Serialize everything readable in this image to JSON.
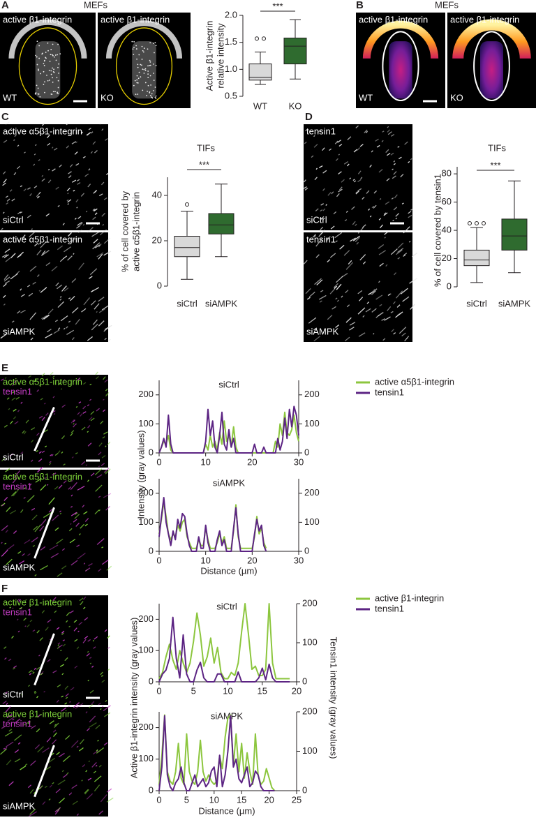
{
  "figure": {
    "panels": [
      {
        "letter": "A",
        "title": "MEFs",
        "images": [
          {
            "label": "active β1-integrin",
            "condition": "WT"
          },
          {
            "label": "active β1-integrin",
            "condition": "KO"
          }
        ]
      },
      {
        "letter": "B",
        "title": "MEFs",
        "images": [
          {
            "label": "active β1-integrin",
            "condition": "WT"
          },
          {
            "label": "active β1-integrin",
            "condition": "KO"
          }
        ]
      },
      {
        "letter": "C",
        "images": [
          {
            "label": "active α5β1-integrin",
            "condition": "siCtrl"
          },
          {
            "label": "active α5β1-integrin",
            "condition": "siAMPK"
          }
        ]
      },
      {
        "letter": "D",
        "images": [
          {
            "label": "tensin1",
            "condition": "siCtrl"
          },
          {
            "label": "tensin1",
            "condition": "siAMPK"
          }
        ]
      },
      {
        "letter": "E",
        "images": [
          {
            "labels": [
              "active α5β1-integrin",
              "tensin1"
            ],
            "condition": "siCtrl"
          },
          {
            "labels": [
              "active α5β1-integrin",
              "tensin1"
            ],
            "condition": "siAMPK"
          }
        ]
      },
      {
        "letter": "F",
        "images": [
          {
            "labels": [
              "active β1-integrin",
              "tensin1"
            ],
            "condition": "siCtrl"
          },
          {
            "labels": [
              "active β1-integrin",
              "tensin1"
            ],
            "condition": "siAMPK"
          }
        ]
      }
    ]
  },
  "chart_data": [
    {
      "type": "box",
      "ylabel": [
        "Active β1-integrin",
        "relative intensity"
      ],
      "categories": [
        "WT",
        "KO"
      ],
      "significance": "***",
      "boxes": [
        {
          "whisker_low": 0.72,
          "q1": 0.8,
          "median": 0.85,
          "q3": 1.1,
          "whisker_high": 1.32,
          "outliers": [
            1.57,
            1.57
          ],
          "color": "#d9d9d9"
        },
        {
          "whisker_low": 0.82,
          "q1": 1.1,
          "median": 1.43,
          "q3": 1.58,
          "whisker_high": 1.92,
          "outliers": [],
          "color": "#2f6b2f"
        }
      ],
      "ylim": [
        0.5,
        2.0
      ],
      "yticks": [
        0.5,
        {
          "value": 1.0,
          "label": "1.0"
        },
        1.5,
        {
          "value": 2.0,
          "label": "2.0"
        }
      ]
    },
    {
      "type": "box",
      "title": "TIFs",
      "ylabel": [
        "% of cell covered by",
        "active α5β1-integrin"
      ],
      "categories": [
        "siCtrl",
        "siAMPK"
      ],
      "significance": "***",
      "boxes": [
        {
          "whisker_low": 3,
          "q1": 13,
          "median": 17,
          "q3": 22,
          "whisker_high": 33,
          "outliers": [
            36
          ],
          "color": "#d9d9d9"
        },
        {
          "whisker_low": 13,
          "q1": 23,
          "median": 27,
          "q3": 32,
          "whisker_high": 45,
          "outliers": [],
          "color": "#2f6b2f"
        }
      ],
      "ylim": [
        0,
        48
      ],
      "yticks": [
        0,
        20,
        40
      ]
    },
    {
      "type": "box",
      "title": "TIFs",
      "ylabel": [
        "% of cell covered by tensin1"
      ],
      "categories": [
        "siCtrl",
        "siAMPK"
      ],
      "significance": "***",
      "boxes": [
        {
          "whisker_low": 3,
          "q1": 15,
          "median": 19,
          "q3": 26,
          "whisker_high": 42,
          "outliers": [
            45,
            45,
            45
          ],
          "color": "#d9d9d9"
        },
        {
          "whisker_low": 10,
          "q1": 26,
          "median": 36,
          "q3": 48,
          "whisker_high": 75,
          "outliers": [],
          "color": "#2f6b2f"
        }
      ],
      "ylim": [
        0,
        85
      ],
      "yticks": [
        0,
        20,
        40,
        60,
        80
      ]
    },
    {
      "type": "line",
      "title": "siCtrl",
      "ylabel": "Intensity (gray values)",
      "x": [
        0,
        0.5,
        1,
        1.5,
        2,
        2.5,
        3,
        3.5,
        4,
        4.5,
        5,
        5.5,
        6,
        6.5,
        7,
        7.5,
        8,
        8.5,
        9,
        9.5,
        10,
        10.5,
        11,
        11.5,
        12,
        12.5,
        13,
        13.5,
        14,
        14.5,
        15,
        15.5,
        16,
        16.5,
        17,
        17.5,
        18,
        18.5,
        19,
        19.5,
        20,
        20.5,
        21,
        21.5,
        22,
        22.5,
        23,
        23.5,
        24,
        24.5,
        25,
        25.5,
        26,
        26.5,
        27,
        27.5,
        28,
        28.5,
        29,
        29.5,
        30
      ],
      "series": [
        {
          "name": "active α5β1-integrin",
          "color": "#8cc63e",
          "values": [
            0,
            20,
            40,
            30,
            60,
            10,
            0,
            0,
            0,
            0,
            0,
            0,
            0,
            0,
            0,
            0,
            0,
            0,
            0,
            0,
            30,
            10,
            60,
            20,
            40,
            10,
            70,
            30,
            110,
            40,
            60,
            20,
            90,
            20,
            0,
            0,
            0,
            0,
            0,
            0,
            0,
            0,
            0,
            0,
            0,
            0,
            0,
            0,
            0,
            0,
            40,
            20,
            100,
            60,
            140,
            70,
            60,
            80,
            130,
            70,
            40
          ]
        },
        {
          "name": "tensin1",
          "color": "#5c2483",
          "axis": "y2",
          "values": [
            0,
            20,
            50,
            20,
            130,
            30,
            0,
            0,
            0,
            0,
            0,
            0,
            0,
            0,
            0,
            0,
            0,
            0,
            0,
            0,
            40,
            150,
            60,
            110,
            20,
            0,
            60,
            140,
            30,
            10,
            80,
            20,
            50,
            0,
            0,
            0,
            0,
            0,
            0,
            0,
            0,
            30,
            0,
            0,
            0,
            20,
            0,
            0,
            0,
            0,
            0,
            50,
            10,
            40,
            120,
            50,
            150,
            90,
            160,
            130,
            60
          ]
        }
      ],
      "xlim": [
        0,
        30
      ],
      "xticks": [
        0,
        10,
        20,
        30
      ],
      "ylim": [
        0,
        250
      ],
      "yticks": [
        0,
        100,
        200
      ],
      "y2lim": [
        0,
        250
      ],
      "y2ticks": [
        0,
        100,
        200
      ]
    },
    {
      "type": "line",
      "title": "siAMPK",
      "xlabel": "Distance (µm)",
      "x": [
        0,
        0.5,
        1,
        1.5,
        2,
        2.5,
        3,
        3.5,
        4,
        4.5,
        5,
        5.5,
        6,
        6.5,
        7,
        7.5,
        8,
        8.5,
        9,
        9.5,
        10,
        10.5,
        11,
        11.5,
        12,
        12.5,
        13,
        13.5,
        14,
        14.5,
        15,
        15.5,
        16,
        16.5,
        17,
        17.5,
        18,
        18.5,
        19,
        19.5,
        20,
        20.5,
        21,
        21.5,
        22,
        22.5,
        23
      ],
      "series": [
        {
          "color": "#8cc63e",
          "values": [
            60,
            110,
            170,
            120,
            60,
            40,
            60,
            50,
            90,
            70,
            100,
            110,
            50,
            30,
            10,
            10,
            10,
            40,
            20,
            20,
            80,
            40,
            10,
            10,
            10,
            30,
            60,
            30,
            50,
            10,
            10,
            10,
            70,
            160,
            50,
            10,
            10,
            10,
            10,
            10,
            10,
            50,
            120,
            60,
            80,
            30,
            10
          ]
        },
        {
          "color": "#5c2483",
          "axis": "y2",
          "values": [
            50,
            120,
            185,
            100,
            60,
            20,
            70,
            40,
            110,
            80,
            130,
            120,
            60,
            20,
            0,
            0,
            0,
            50,
            10,
            10,
            90,
            30,
            0,
            0,
            0,
            40,
            70,
            20,
            40,
            0,
            0,
            0,
            80,
            150,
            60,
            0,
            0,
            0,
            0,
            0,
            0,
            60,
            110,
            70,
            90,
            20,
            0
          ]
        }
      ],
      "xlim": [
        0,
        30
      ],
      "xticks": [
        0,
        10,
        20,
        30
      ],
      "ylim": [
        0,
        250
      ],
      "yticks": [
        0,
        100,
        200
      ],
      "y2lim": [
        0,
        250
      ],
      "y2ticks": [
        0,
        100,
        200
      ]
    },
    {
      "type": "line",
      "title": "siCtrl",
      "ylabel": "Active β1-integrin intensity (gray values)",
      "y2label": "Tensin1 intensity (gray values)",
      "x": [
        0,
        0.5,
        1,
        1.5,
        2,
        2.5,
        3,
        3.5,
        4,
        4.5,
        5,
        5.5,
        6,
        6.5,
        7,
        7.5,
        8,
        8.5,
        9,
        9.5,
        10,
        10.5,
        11,
        11.5,
        12,
        12.5,
        13,
        13.5,
        14,
        14.5,
        15,
        15.5,
        16,
        16.5,
        17,
        17.5,
        18,
        18.5,
        19
      ],
      "series": [
        {
          "name": "active β1-integrin",
          "color": "#8cc63e",
          "values": [
            10,
            30,
            80,
            120,
            70,
            40,
            100,
            60,
            30,
            60,
            130,
            220,
            150,
            50,
            80,
            140,
            60,
            110,
            30,
            10,
            10,
            30,
            20,
            60,
            160,
            250,
            150,
            40,
            50,
            20,
            20,
            40,
            250,
            60,
            10,
            10,
            10,
            10,
            10
          ]
        },
        {
          "name": "tensin1",
          "color": "#5c2483",
          "axis": "y2",
          "values": [
            0,
            20,
            30,
            60,
            165,
            60,
            10,
            120,
            20,
            0,
            0,
            30,
            50,
            10,
            0,
            0,
            0,
            20,
            20,
            0,
            0,
            0,
            0,
            25,
            0,
            0,
            0,
            0,
            0,
            10,
            35,
            5,
            45,
            10,
            0,
            0,
            0,
            0,
            0
          ]
        }
      ],
      "xlim": [
        0,
        20
      ],
      "xticks": [
        0,
        5,
        10,
        15,
        20
      ],
      "ylim": [
        0,
        250
      ],
      "yticks": [
        0,
        100,
        200
      ],
      "y2lim": [
        0,
        200
      ],
      "y2ticks": [
        0,
        100,
        200
      ]
    },
    {
      "type": "line",
      "title": "siAMPK",
      "xlabel": "Distance (µm)",
      "x": [
        0,
        0.5,
        1,
        1.5,
        2,
        2.5,
        3,
        3.5,
        4,
        4.5,
        5,
        5.5,
        6,
        6.5,
        7,
        7.5,
        8,
        8.5,
        9,
        9.5,
        10,
        10.5,
        11,
        11.5,
        12,
        12.5,
        13,
        13.5,
        14,
        14.5,
        15,
        15.5,
        16,
        16.5,
        17,
        17.5,
        18,
        18.5,
        19,
        19.5,
        20,
        20.5,
        21
      ],
      "series": [
        {
          "color": "#8cc63e",
          "values": [
            20,
            110,
            240,
            60,
            30,
            20,
            60,
            150,
            40,
            20,
            180,
            60,
            30,
            20,
            60,
            160,
            60,
            30,
            50,
            30,
            20,
            30,
            110,
            70,
            170,
            230,
            240,
            80,
            180,
            60,
            150,
            40,
            120,
            60,
            20,
            180,
            50,
            20,
            30,
            70,
            40,
            10,
            0
          ]
        },
        {
          "color": "#5c2483",
          "axis": "y2",
          "values": [
            0,
            60,
            190,
            40,
            10,
            0,
            20,
            30,
            60,
            20,
            0,
            0,
            20,
            40,
            10,
            20,
            30,
            10,
            20,
            50,
            60,
            10,
            90,
            10,
            40,
            100,
            190,
            60,
            80,
            30,
            20,
            40,
            60,
            10,
            20,
            50,
            40,
            10,
            0,
            0,
            0,
            0,
            0
          ]
        }
      ],
      "xlim": [
        0,
        25
      ],
      "xticks": [
        0,
        5,
        10,
        15,
        20,
        25
      ],
      "ylim": [
        0,
        250
      ],
      "yticks": [
        0,
        100,
        200
      ],
      "y2lim": [
        0,
        200
      ],
      "y2ticks": [
        0,
        100,
        200
      ]
    }
  ]
}
